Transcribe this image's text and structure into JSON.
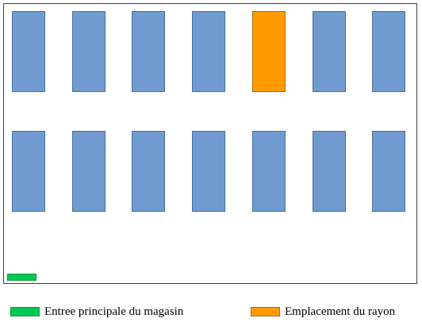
{
  "colors": {
    "shelf": "#6f9bd1",
    "highlighted_shelf": "#ff9a00",
    "entrance": "#00c853",
    "border": "#3f3f3f"
  },
  "shelves": {
    "rows": 2,
    "columns": 7,
    "highlighted": {
      "row": 1,
      "column": 5
    }
  },
  "legend": {
    "entrance_label": "Entree principale du magasin",
    "shelf_label": "Emplacement du rayon"
  }
}
